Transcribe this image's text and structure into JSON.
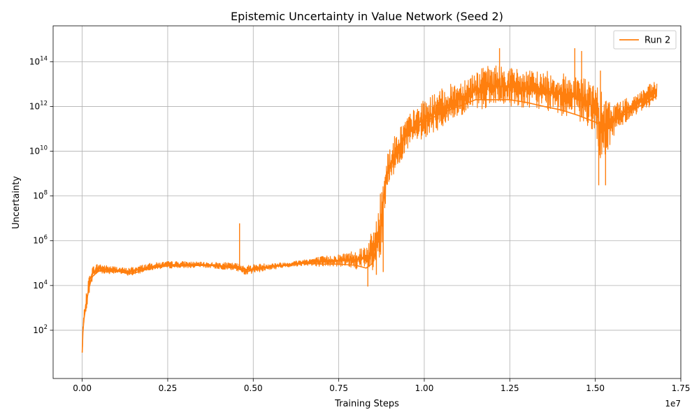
{
  "chart_data": {
    "type": "line",
    "title": "Epistemic Uncertainty in Value Network (Seed 2)",
    "xlabel": "Training Steps",
    "ylabel": "Uncertainty",
    "x_offset_label": "1e7",
    "x_scale": "linear",
    "y_scale": "log",
    "xlim": [
      -850000,
      17500000
    ],
    "ylim": [
      0.7,
      4000000000000000.0
    ],
    "x_ticks": [
      0,
      2500000,
      5000000,
      7500000,
      10000000,
      12500000,
      15000000,
      17500000
    ],
    "x_tick_labels": [
      "0.00",
      "0.25",
      "0.50",
      "0.75",
      "1.00",
      "1.25",
      "1.50",
      "1.75"
    ],
    "y_ticks": [
      100,
      10000,
      1000000,
      100000000,
      10000000000,
      1000000000000,
      100000000000000
    ],
    "y_tick_labels": [
      {
        "base": "10",
        "exp": "2"
      },
      {
        "base": "10",
        "exp": "4"
      },
      {
        "base": "10",
        "exp": "6"
      },
      {
        "base": "10",
        "exp": "8"
      },
      {
        "base": "10",
        "exp": "10"
      },
      {
        "base": "10",
        "exp": "12"
      },
      {
        "base": "10",
        "exp": "14"
      }
    ],
    "grid": true,
    "legend_position": "top-right",
    "series": [
      {
        "name": "Run 2",
        "color": "#ff7f0e",
        "x": [
          0,
          20000,
          50000,
          100000,
          150000,
          200000,
          250000,
          300000,
          400000,
          500000,
          700000,
          1000000,
          1300000,
          1500000,
          2000000,
          2500000,
          3000000,
          3500000,
          4000000,
          4500000,
          4800000,
          5000000,
          5500000,
          6000000,
          6500000,
          7000000,
          7500000,
          8000000,
          8300000,
          8500000,
          8700000,
          8900000,
          9200000,
          9500000,
          10000000,
          10500000,
          11000000,
          11500000,
          12000000,
          12500000,
          13000000,
          13500000,
          14000000,
          14500000,
          15000000,
          15200000,
          15500000,
          16000000,
          16500000,
          16800000
        ],
        "y": [
          10,
          80,
          300,
          1000,
          3000,
          8000,
          15000,
          25000,
          35000,
          45000,
          42000,
          45000,
          35000,
          35000,
          60000,
          75000,
          75000,
          80000,
          75000,
          60000,
          40000,
          50000,
          70000,
          80000,
          100000,
          90000,
          90000,
          80000,
          60000,
          100000,
          3000000,
          1000000000,
          10000000000,
          60000000000,
          200000000000,
          500000000000,
          1000000000000,
          2000000000000,
          2000000000000,
          2000000000000,
          1500000000000,
          1000000000000,
          700000000000,
          400000000000,
          200000000000,
          150000000000,
          200000000000,
          600000000000,
          1500000000000,
          3000000000000
        ],
        "upper": [
          20,
          200,
          700,
          3000,
          8000,
          30000,
          60000,
          70000,
          90000,
          100000,
          80000,
          70000,
          60000,
          70000,
          100000,
          120000,
          120000,
          110000,
          110000,
          100000,
          80000,
          90000,
          100000,
          110000,
          150000,
          200000,
          250000,
          400000,
          800000,
          3000000,
          100000000,
          10000000000,
          80000000000,
          400000000000,
          2000000000000,
          6000000000000,
          15000000000000,
          40000000000000,
          80000000000000,
          60000000000000,
          40000000000000,
          40000000000000,
          30000000000000,
          30000000000000,
          10000000000000,
          4000000000000,
          1500000000000,
          2500000000000,
          8000000000000,
          15000000000000
        ],
        "lower": [
          5,
          50,
          150,
          500,
          1500,
          4000,
          9000,
          18000,
          28000,
          35000,
          33000,
          35000,
          28000,
          28000,
          50000,
          60000,
          60000,
          65000,
          55000,
          45000,
          30000,
          35000,
          50000,
          65000,
          80000,
          70000,
          70000,
          55000,
          35000,
          30000,
          40000,
          80000000,
          2000000000,
          10000000000,
          40000000000,
          100000000000,
          300000000000,
          700000000000,
          900000000000,
          1000000000000,
          900000000000,
          700000000000,
          400000000000,
          200000000000,
          80000000000,
          1000000000,
          40000000000,
          300000000000,
          800000000000,
          1500000000000
        ],
        "spikes": [
          {
            "x": 4600000,
            "y": 6000000
          },
          {
            "x": 8350000,
            "y": 9000
          },
          {
            "x": 8600000,
            "y": 30000
          },
          {
            "x": 8800000,
            "y": 40000
          },
          {
            "x": 12200000,
            "y": 400000000000000
          },
          {
            "x": 14400000,
            "y": 400000000000000
          },
          {
            "x": 14600000,
            "y": 300000000000000
          },
          {
            "x": 15100000,
            "y": 300000000
          },
          {
            "x": 15300000,
            "y": 300000000
          },
          {
            "x": 15150000,
            "y": 40000000000000
          }
        ]
      }
    ]
  }
}
